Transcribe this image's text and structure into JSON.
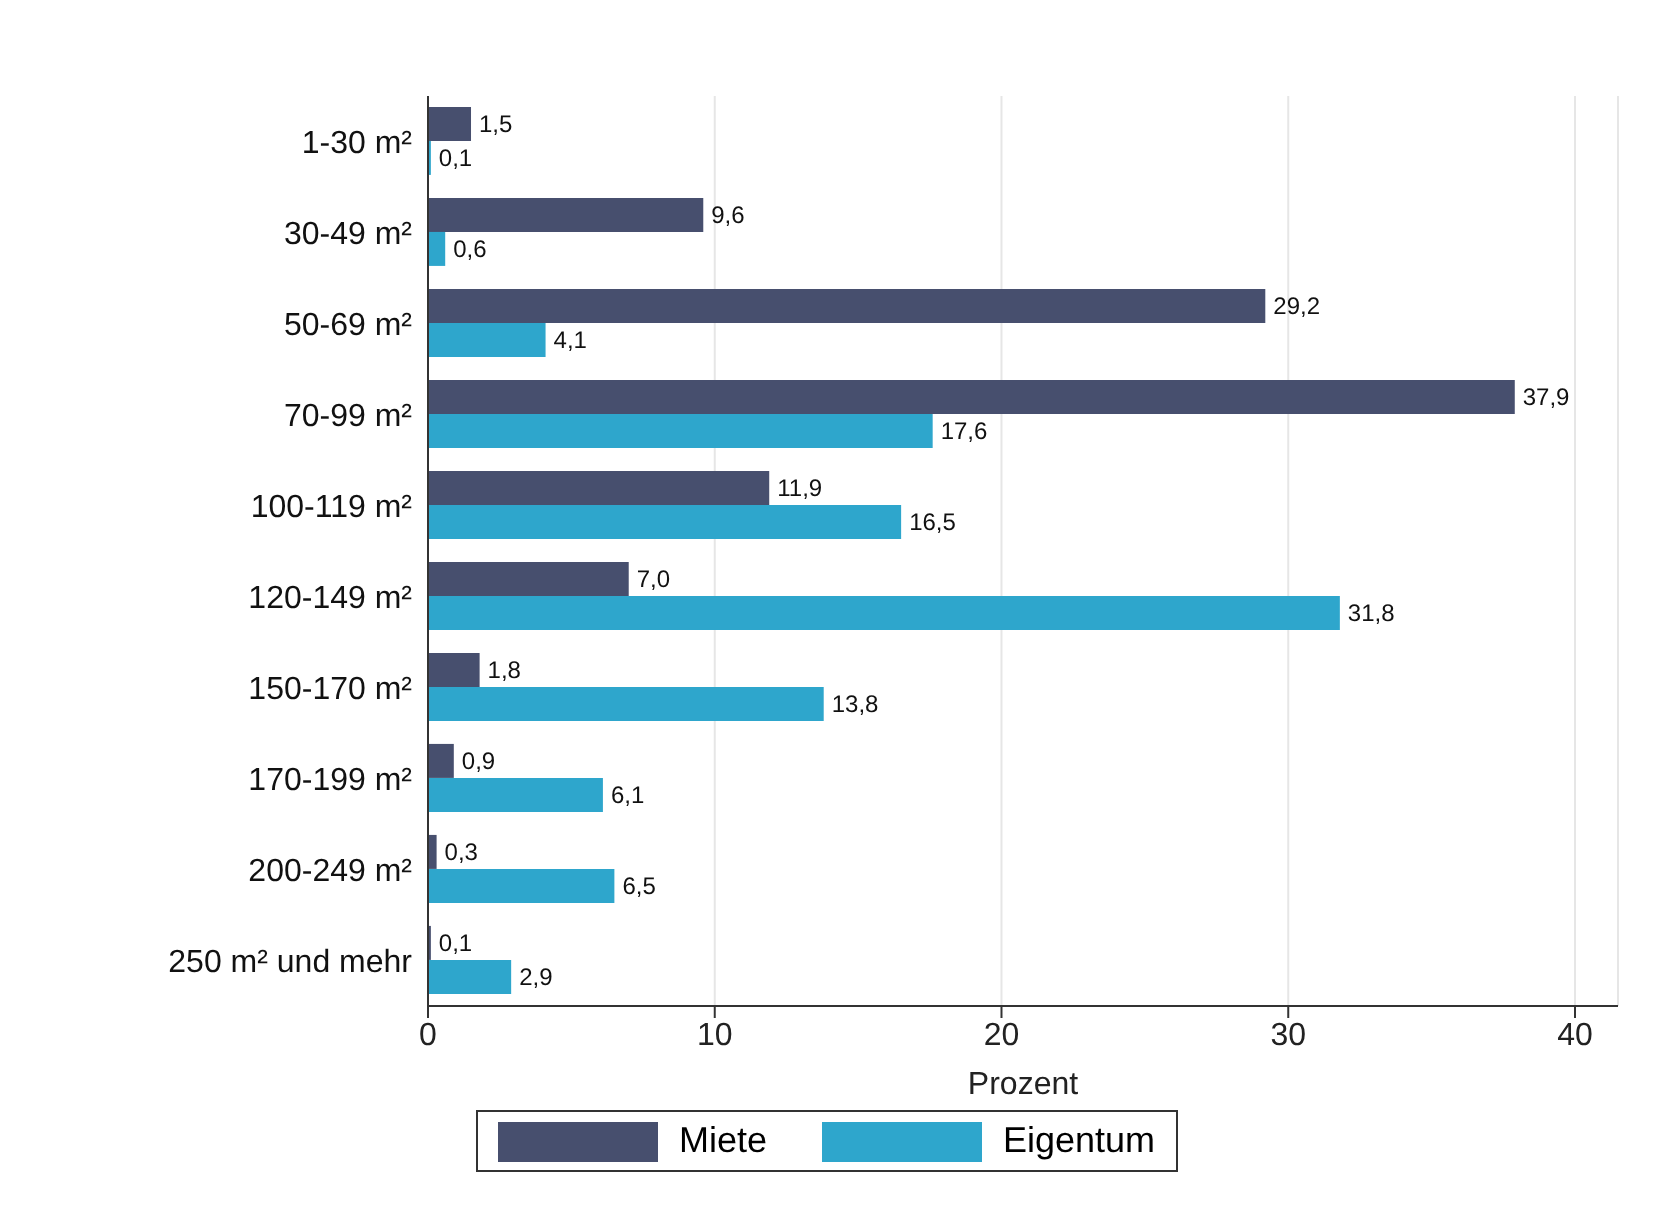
{
  "chart_data": {
    "type": "bar",
    "orientation": "horizontal",
    "xlabel": "Prozent",
    "categories": [
      "1-30 m²",
      "30-49 m²",
      "50-69 m²",
      "70-99 m²",
      "100-119 m²",
      "120-149 m²",
      "150-170 m²",
      "170-199 m²",
      "200-249 m²",
      "250 m² und mehr"
    ],
    "series": [
      {
        "name": "Miete",
        "color": "#474f6e",
        "values": [
          1.5,
          9.6,
          29.2,
          37.9,
          11.9,
          7.0,
          1.8,
          0.9,
          0.3,
          0.1
        ],
        "value_labels": [
          "1,5",
          "9,6",
          "29,2",
          "37,9",
          "11,9",
          "7,0",
          "1,8",
          "0,9",
          "0,3",
          "0,1"
        ]
      },
      {
        "name": "Eigentum",
        "color": "#2ea6cc",
        "values": [
          0.1,
          0.6,
          4.1,
          17.6,
          16.5,
          31.8,
          13.8,
          6.1,
          6.5,
          2.9
        ],
        "value_labels": [
          "0,1",
          "0,6",
          "4,1",
          "17,6",
          "16,5",
          "31,8",
          "13,8",
          "6,1",
          "6,5",
          "2,9"
        ]
      }
    ],
    "xlim": [
      0,
      41.5
    ],
    "xticks": [
      0,
      10,
      20,
      30,
      40
    ],
    "grid": "x",
    "legend": "bottom"
  }
}
